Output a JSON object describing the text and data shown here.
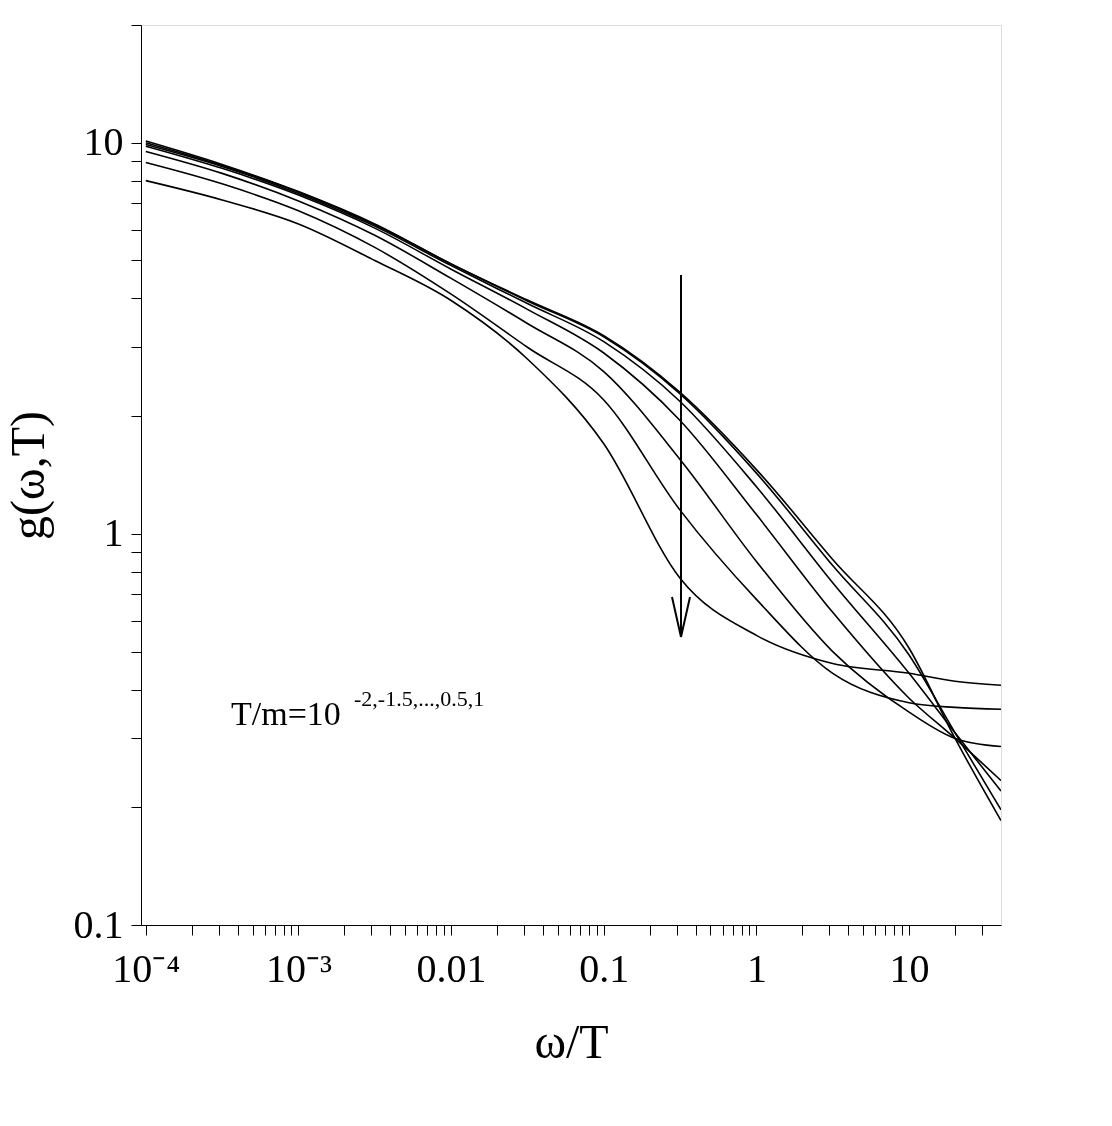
{
  "chart_data": {
    "type": "line",
    "xlabel": "ω/T",
    "ylabel": "g(ω,T)",
    "x": [
      0.0001,
      0.000316,
      0.001,
      0.00316,
      0.01,
      0.0316,
      0.1,
      0.316,
      1,
      3.16,
      10,
      20,
      40
    ],
    "series": [
      {
        "color": "#000000",
        "values": [
          10.1,
          8.8,
          7.5,
          6.2,
          4.9,
          3.96,
          3.21,
          2.3,
          1.46,
          0.86,
          0.51,
          0.3,
          0.185
        ]
      },
      {
        "color": "#000000",
        "values": [
          10.0,
          8.75,
          7.48,
          6.17,
          4.9,
          3.94,
          3.19,
          2.28,
          1.43,
          0.83,
          0.49,
          0.31,
          0.197
        ]
      },
      {
        "color": "#000000",
        "values": [
          9.9,
          8.7,
          7.42,
          6.12,
          4.85,
          3.88,
          3.1,
          2.18,
          1.32,
          0.75,
          0.44,
          0.31,
          0.22
        ]
      },
      {
        "color": "#000000",
        "values": [
          9.8,
          8.6,
          7.35,
          6.05,
          4.75,
          3.75,
          2.9,
          1.95,
          1.12,
          0.63,
          0.38,
          0.3,
          0.234
        ]
      },
      {
        "color": "#000000",
        "values": [
          9.5,
          8.35,
          7.1,
          5.8,
          4.5,
          3.45,
          2.6,
          1.55,
          0.85,
          0.5,
          0.35,
          0.3,
          0.286
        ]
      },
      {
        "color": "#000000",
        "values": [
          8.9,
          7.85,
          6.7,
          5.4,
          4.1,
          3.0,
          2.2,
          1.15,
          0.68,
          0.44,
          0.37,
          0.36,
          0.356
        ]
      },
      {
        "color": "#000000",
        "values": [
          8.0,
          7.14,
          6.2,
          5.0,
          3.95,
          2.8,
          1.7,
          0.77,
          0.55,
          0.466,
          0.44,
          0.42,
          0.41
        ]
      }
    ],
    "log": "xy",
    "xlim": [
      9.3e-05,
      40
    ],
    "ylim": [
      0.1,
      20
    ],
    "xticks": [
      {
        "value": 0.0001,
        "label": "10⁻⁴"
      },
      {
        "value": 0.0002,
        "label": null
      },
      {
        "value": 0.0003,
        "label": null
      },
      {
        "value": 0.0004,
        "label": null
      },
      {
        "value": 0.0005,
        "label": null
      },
      {
        "value": 0.0006,
        "label": null
      },
      {
        "value": 0.0007,
        "label": null
      },
      {
        "value": 0.0008,
        "label": null
      },
      {
        "value": 0.0009,
        "label": null
      },
      {
        "value": 0.001,
        "label": "10⁻³"
      },
      {
        "value": 0.002,
        "label": null
      },
      {
        "value": 0.003,
        "label": null
      },
      {
        "value": 0.004,
        "label": null
      },
      {
        "value": 0.005,
        "label": null
      },
      {
        "value": 0.006,
        "label": null
      },
      {
        "value": 0.007,
        "label": null
      },
      {
        "value": 0.008,
        "label": null
      },
      {
        "value": 0.009,
        "label": null
      },
      0.01,
      {
        "value": 0.02,
        "label": null
      },
      {
        "value": 0.03,
        "label": null
      },
      {
        "value": 0.04,
        "label": null
      },
      {
        "value": 0.05,
        "label": null
      },
      {
        "value": 0.06,
        "label": null
      },
      {
        "value": 0.07,
        "label": null
      },
      {
        "value": 0.08,
        "label": null
      },
      {
        "value": 0.09,
        "label": null
      },
      0.1,
      {
        "value": 0.2,
        "label": null
      },
      {
        "value": 0.3,
        "label": null
      },
      {
        "value": 0.4,
        "label": null
      },
      {
        "value": 0.5,
        "label": null
      },
      {
        "value": 0.6,
        "label": null
      },
      {
        "value": 0.7,
        "label": null
      },
      {
        "value": 0.8,
        "label": null
      },
      {
        "value": 0.9,
        "label": null
      },
      1,
      {
        "value": 2,
        "label": null
      },
      {
        "value": 3,
        "label": null
      },
      {
        "value": 4,
        "label": null
      },
      {
        "value": 5,
        "label": null
      },
      {
        "value": 6,
        "label": null
      },
      {
        "value": 7,
        "label": null
      },
      {
        "value": 8,
        "label": null
      },
      {
        "value": 9,
        "label": null
      },
      10,
      {
        "value": 20,
        "label": null
      },
      {
        "value": 30,
        "label": null
      }
    ],
    "yticks": [
      0.1,
      {
        "value": 0.2,
        "label": null
      },
      {
        "value": 0.3,
        "label": null
      },
      {
        "value": 0.4,
        "label": null
      },
      {
        "value": 0.5,
        "label": null
      },
      {
        "value": 0.6,
        "label": null
      },
      {
        "value": 0.7,
        "label": null
      },
      {
        "value": 0.8,
        "label": null
      },
      {
        "value": 0.9,
        "label": null
      },
      1,
      {
        "value": 2,
        "label": null
      },
      {
        "value": 3,
        "label": null
      },
      {
        "value": 4,
        "label": null
      },
      {
        "value": 5,
        "label": null
      },
      {
        "value": 6,
        "label": null
      },
      {
        "value": 7,
        "label": null
      },
      {
        "value": 8,
        "label": null
      },
      {
        "value": 9,
        "label": null
      },
      10,
      {
        "value": 20,
        "label": null
      }
    ],
    "grid": false,
    "legend": false,
    "marker": "none",
    "line_style": "solid",
    "annotations": [
      "T/m=10$^{-2,-1.5,...,0.5,1}$"
    ]
  }
}
